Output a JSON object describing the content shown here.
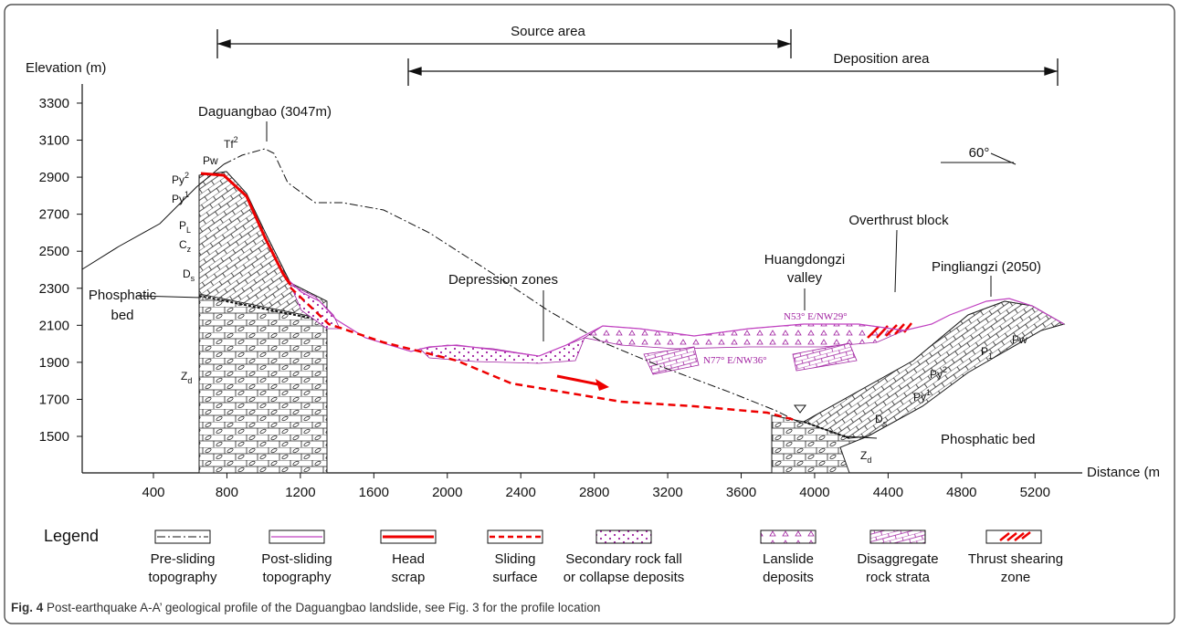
{
  "axes": {
    "y_label": "Elevation (m)",
    "x_label": "Distance (m",
    "yticks": [
      1500,
      1700,
      1900,
      2100,
      2300,
      2500,
      2700,
      2900,
      3100,
      3300
    ],
    "xticks": [
      400,
      800,
      1200,
      1600,
      2000,
      2400,
      2800,
      3200,
      3600,
      4000,
      4400,
      4800,
      5200
    ]
  },
  "ranges": [
    {
      "label": "Source area"
    },
    {
      "label": "Deposition area"
    }
  ],
  "annotations": {
    "peak": "Daguangbao (3047m)",
    "depression": "Depression zones",
    "valley": [
      "Huangdongzi",
      "valley"
    ],
    "overthrust": "Overthrust block",
    "pingliangzi": "Pingliangzi (2050)",
    "dip": "60°",
    "orientation_1": "N53° E/NW29°",
    "orientation_2": "N77° E/NW36°",
    "left_phosphatic": [
      "Phosphatic",
      "bed"
    ],
    "right_phosphatic": "Phosphatic bed",
    "left_strata": [
      {
        "base": "Tf",
        "sub": "",
        "sup": "2"
      },
      {
        "base": "Pw",
        "sub": "",
        "sup": ""
      },
      {
        "base": "Py",
        "sub": "",
        "sup": "2"
      },
      {
        "base": "Py",
        "sub": "",
        "sup": "1"
      },
      {
        "base": "P",
        "sub": "L",
        "sup": ""
      },
      {
        "base": "C",
        "sub": "z",
        "sup": ""
      },
      {
        "base": "D",
        "sub": "s",
        "sup": ""
      },
      {
        "base": "Z",
        "sub": "d",
        "sup": ""
      }
    ],
    "right_strata": [
      {
        "base": "Pw",
        "sub": "",
        "sup": ""
      },
      {
        "base": "P",
        "sub": "1",
        "sup": ""
      },
      {
        "base": "Py",
        "sub": "",
        "sup": "2"
      },
      {
        "base": "Py",
        "sub": "",
        "sup": "1"
      },
      {
        "base": "D",
        "sub": "s",
        "sup": ""
      },
      {
        "base": "Z",
        "sub": "d",
        "sup": ""
      }
    ]
  },
  "legend": {
    "title": "Legend",
    "items": [
      {
        "lines": [
          "Pre-sliding",
          "topography"
        ]
      },
      {
        "lines": [
          "Post-sliding",
          "topography"
        ]
      },
      {
        "lines": [
          "Head",
          "scrap"
        ]
      },
      {
        "lines": [
          "Sliding",
          "surface"
        ]
      },
      {
        "lines": [
          "Secondary rock fall",
          "or collapse deposits"
        ]
      },
      {
        "lines": [
          "Lanslide",
          "deposits"
        ]
      },
      {
        "lines": [
          "Disaggregate",
          "rock strata"
        ]
      },
      {
        "lines": [
          "Thrust shearing",
          "zone"
        ]
      }
    ]
  },
  "caption": {
    "label": "Fig. 4",
    "text": "Post-earthquake A-A’ geological profile of the Daguangbao landslide, see Fig. 3 for the profile location"
  }
}
